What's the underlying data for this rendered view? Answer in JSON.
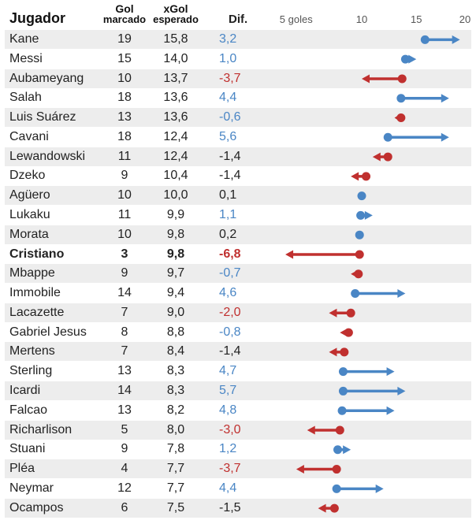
{
  "colors": {
    "positive": "#4a86c5",
    "negative": "#c0302f",
    "neutral": "#222222",
    "row_band": "#ededed"
  },
  "headers": {
    "player": "Jugador",
    "goals_top": "Gol",
    "goals_bottom": "marcado",
    "xg_top": "xGol",
    "xg_bottom": "esperado",
    "diff": "Dif."
  },
  "chart_data": {
    "type": "dot-arrow",
    "axis": {
      "ticks": [
        "5 goles",
        "10",
        "15",
        "20"
      ],
      "tick_values": [
        5,
        10,
        15,
        20
      ],
      "range": [
        0,
        20
      ]
    },
    "rows": [
      {
        "player": "Kane",
        "goals": "19",
        "xg": "15,8",
        "diff": "3,2",
        "goals_value": 19,
        "xg_value": 15.8,
        "diff_value": 3.2,
        "bold": false
      },
      {
        "player": "Messi",
        "goals": "15",
        "xg": "14,0",
        "diff": "1,0",
        "goals_value": 15,
        "xg_value": 14.0,
        "diff_value": 1.0,
        "bold": false
      },
      {
        "player": "Aubameyang",
        "goals": "10",
        "xg": "13,7",
        "diff": "-3,7",
        "goals_value": 10,
        "xg_value": 13.7,
        "diff_value": -3.7,
        "bold": false
      },
      {
        "player": "Salah",
        "goals": "18",
        "xg": "13,6",
        "diff": "4,4",
        "goals_value": 18,
        "xg_value": 13.6,
        "diff_value": 4.4,
        "bold": false
      },
      {
        "player": "Luis Suárez",
        "goals": "13",
        "xg": "13,6",
        "diff": "-0,6",
        "goals_value": 13,
        "xg_value": 13.6,
        "diff_value": -0.6,
        "bold": false
      },
      {
        "player": "Cavani",
        "goals": "18",
        "xg": "12,4",
        "diff": "5,6",
        "goals_value": 18,
        "xg_value": 12.4,
        "diff_value": 5.6,
        "bold": false
      },
      {
        "player": "Lewandowski",
        "goals": "11",
        "xg": "12,4",
        "diff": "-1,4",
        "goals_value": 11,
        "xg_value": 12.4,
        "diff_value": -1.4,
        "bold": false
      },
      {
        "player": "Dzeko",
        "goals": "9",
        "xg": "10,4",
        "diff": "-1,4",
        "goals_value": 9,
        "xg_value": 10.4,
        "diff_value": -1.4,
        "bold": false
      },
      {
        "player": "Agüero",
        "goals": "10",
        "xg": "10,0",
        "diff": "0,1",
        "goals_value": 10,
        "xg_value": 10.0,
        "diff_value": 0.1,
        "bold": false
      },
      {
        "player": "Lukaku",
        "goals": "11",
        "xg": "9,9",
        "diff": "1,1",
        "goals_value": 11,
        "xg_value": 9.9,
        "diff_value": 1.1,
        "bold": false
      },
      {
        "player": "Morata",
        "goals": "10",
        "xg": "9,8",
        "diff": "0,2",
        "goals_value": 10,
        "xg_value": 9.8,
        "diff_value": 0.2,
        "bold": false
      },
      {
        "player": "Cristiano",
        "goals": "3",
        "xg": "9,8",
        "diff": "-6,8",
        "goals_value": 3,
        "xg_value": 9.8,
        "diff_value": -6.8,
        "bold": true
      },
      {
        "player": "Mbappe",
        "goals": "9",
        "xg": "9,7",
        "diff": "-0,7",
        "goals_value": 9,
        "xg_value": 9.7,
        "diff_value": -0.7,
        "bold": false
      },
      {
        "player": "Immobile",
        "goals": "14",
        "xg": "9,4",
        "diff": "4,6",
        "goals_value": 14,
        "xg_value": 9.4,
        "diff_value": 4.6,
        "bold": false
      },
      {
        "player": "Lacazette",
        "goals": "7",
        "xg": "9,0",
        "diff": "-2,0",
        "goals_value": 7,
        "xg_value": 9.0,
        "diff_value": -2.0,
        "bold": false
      },
      {
        "player": "Gabriel Jesus",
        "goals": "8",
        "xg": "8,8",
        "diff": "-0,8",
        "goals_value": 8,
        "xg_value": 8.8,
        "diff_value": -0.8,
        "bold": false
      },
      {
        "player": "Mertens",
        "goals": "7",
        "xg": "8,4",
        "diff": "-1,4",
        "goals_value": 7,
        "xg_value": 8.4,
        "diff_value": -1.4,
        "bold": false
      },
      {
        "player": "Sterling",
        "goals": "13",
        "xg": "8,3",
        "diff": "4,7",
        "goals_value": 13,
        "xg_value": 8.3,
        "diff_value": 4.7,
        "bold": false
      },
      {
        "player": "Icardi",
        "goals": "14",
        "xg": "8,3",
        "diff": "5,7",
        "goals_value": 14,
        "xg_value": 8.3,
        "diff_value": 5.7,
        "bold": false
      },
      {
        "player": "Falcao",
        "goals": "13",
        "xg": "8,2",
        "diff": "4,8",
        "goals_value": 13,
        "xg_value": 8.2,
        "diff_value": 4.8,
        "bold": false
      },
      {
        "player": "Richarlison",
        "goals": "5",
        "xg": "8,0",
        "diff": "-3,0",
        "goals_value": 5,
        "xg_value": 8.0,
        "diff_value": -3.0,
        "bold": false
      },
      {
        "player": "Stuani",
        "goals": "9",
        "xg": "7,8",
        "diff": "1,2",
        "goals_value": 9,
        "xg_value": 7.8,
        "diff_value": 1.2,
        "bold": false
      },
      {
        "player": "Pléa",
        "goals": "4",
        "xg": "7,7",
        "diff": "-3,7",
        "goals_value": 4,
        "xg_value": 7.7,
        "diff_value": -3.7,
        "bold": false
      },
      {
        "player": "Neymar",
        "goals": "12",
        "xg": "7,7",
        "diff": "4,4",
        "goals_value": 12,
        "xg_value": 7.7,
        "diff_value": 4.4,
        "bold": false
      },
      {
        "player": "Ocampos",
        "goals": "6",
        "xg": "7,5",
        "diff": "-1,5",
        "goals_value": 6,
        "xg_value": 7.5,
        "diff_value": -1.5,
        "bold": false
      }
    ]
  }
}
